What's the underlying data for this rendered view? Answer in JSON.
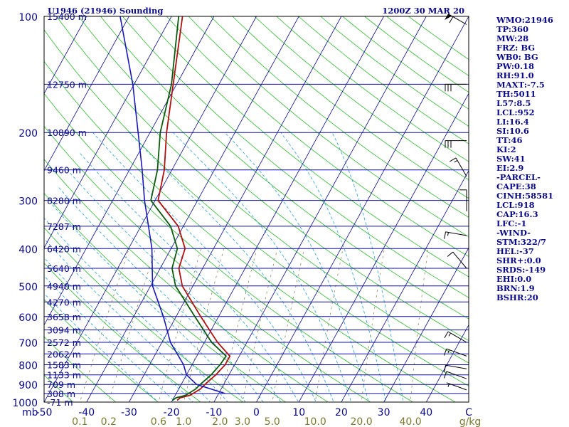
{
  "header": {
    "station": "U1946 (21946) Sounding",
    "valid_time": "1200Z 30 MAR 20"
  },
  "indices": [
    "WMO:21946",
    "TP:360",
    "MW:28",
    "FRZ: BG",
    "WB0: BG",
    "PW:0.18",
    "RH:91.0",
    "MAXT:-7.5",
    "TH:5011",
    "L57:8.5",
    "LCL:952",
    "LI:16.4",
    "SI:10.6",
    "TT:46",
    "KI:2",
    "SW:41",
    "EI:2.9",
    "-PARCEL-",
    "CAPE:38",
    "CINH:58581",
    "LCL:918",
    "CAP:16.3",
    "LFC:-1",
    "-WIND-",
    "STM:322/7",
    "HEL:-37",
    "SHR+:0.0",
    "SRDS:-149",
    "EHI:0.0",
    "BRN:1.9",
    "BSHR:20"
  ],
  "colors": {
    "frame": "#000000",
    "isobar": "#1010a0",
    "isotherm": "#0a0a8c",
    "dry_adiabat": "#2db82d",
    "moist_adiabat": "#2a9fd6",
    "mixing_ratio": "#8c8c5a",
    "temperature": "#b01010",
    "dewpoint": "#0c5a0c",
    "std_atmosphere": "#1818b8",
    "labels": "#0a0a8c",
    "mixing_labels": "#7a7a30",
    "wind_barbs": "#000000"
  },
  "chart_data": {
    "type": "skew-t log-p",
    "y_axis": {
      "quantity": "pressure",
      "unit_label": "mb",
      "scale": "log",
      "range": [
        1000,
        100
      ],
      "ticks": [
        100,
        200,
        300,
        400,
        500,
        600,
        700,
        800,
        900,
        1000
      ]
    },
    "x_axis": {
      "quantity": "temperature",
      "unit_label": "C",
      "range": [
        -50,
        50
      ],
      "ticks": [
        -50,
        -40,
        -30,
        -20,
        -10,
        0,
        10,
        20,
        30,
        40
      ],
      "tick_labels": [
        "-50",
        "-40",
        "-30",
        "-20",
        "-10",
        "0",
        "10",
        "20",
        "30",
        "40"
      ],
      "skew_degrees_per_decade": 50
    },
    "mixing_ratio_lines": {
      "unit_label": "g/kg",
      "values": [
        0.1,
        0.2,
        0.6,
        1.0,
        2.0,
        3.0,
        5.0,
        10.0,
        20.0,
        40.0
      ],
      "labels": [
        "0.1",
        "0.2",
        "0.6",
        "1.0",
        "2.0",
        "3.0",
        "5.0",
        "10.0",
        "20.0",
        "40.0"
      ]
    },
    "height_labels": [
      {
        "p": 100,
        "label": "15400 m"
      },
      {
        "p": 150,
        "label": "12750 m"
      },
      {
        "p": 200,
        "label": "10890 m"
      },
      {
        "p": 250,
        "label": "9460 m"
      },
      {
        "p": 300,
        "label": "8280 m"
      },
      {
        "p": 350,
        "label": "7287 m"
      },
      {
        "p": 400,
        "label": "6420 m"
      },
      {
        "p": 450,
        "label": "5640 m"
      },
      {
        "p": 500,
        "label": "4940 m"
      },
      {
        "p": 550,
        "label": "4270 m"
      },
      {
        "p": 600,
        "label": "3658 m"
      },
      {
        "p": 650,
        "label": "3094 m"
      },
      {
        "p": 700,
        "label": "2572 m"
      },
      {
        "p": 750,
        "label": "2062 m"
      },
      {
        "p": 800,
        "label": "1583 m"
      },
      {
        "p": 850,
        "label": "1133 m"
      },
      {
        "p": 900,
        "label": "709 m"
      },
      {
        "p": 950,
        "label": "308 m"
      },
      {
        "p": 1000,
        "label": "-71 m"
      }
    ],
    "series": [
      {
        "name": "Temperature",
        "points": [
          {
            "p": 990,
            "t": -18.9
          },
          {
            "p": 975,
            "t": -18.5
          },
          {
            "p": 960,
            "t": -16.5
          },
          {
            "p": 925,
            "t": -14.9
          },
          {
            "p": 900,
            "t": -14.4
          },
          {
            "p": 850,
            "t": -13.1
          },
          {
            "p": 800,
            "t": -12.2
          },
          {
            "p": 760,
            "t": -12.2
          },
          {
            "p": 700,
            "t": -16.9
          },
          {
            "p": 600,
            "t": -24.2
          },
          {
            "p": 500,
            "t": -32.5
          },
          {
            "p": 450,
            "t": -35.6
          },
          {
            "p": 400,
            "t": -36.7
          },
          {
            "p": 350,
            "t": -41.2
          },
          {
            "p": 300,
            "t": -49.3
          },
          {
            "p": 250,
            "t": -51.8
          },
          {
            "p": 200,
            "t": -56.1
          },
          {
            "p": 150,
            "t": -60.8
          },
          {
            "p": 100,
            "t": -67.4
          }
        ]
      },
      {
        "name": "Dewpoint",
        "points": [
          {
            "p": 990,
            "t": -20.0
          },
          {
            "p": 975,
            "t": -19.5
          },
          {
            "p": 960,
            "t": -17.5
          },
          {
            "p": 925,
            "t": -16.0
          },
          {
            "p": 900,
            "t": -15.5
          },
          {
            "p": 850,
            "t": -14.2
          },
          {
            "p": 800,
            "t": -13.4
          },
          {
            "p": 760,
            "t": -13.1
          },
          {
            "p": 700,
            "t": -18.3
          },
          {
            "p": 600,
            "t": -25.6
          },
          {
            "p": 500,
            "t": -34.1
          },
          {
            "p": 450,
            "t": -37.2
          },
          {
            "p": 400,
            "t": -38.5
          },
          {
            "p": 350,
            "t": -43.0
          },
          {
            "p": 300,
            "t": -51.0
          },
          {
            "p": 250,
            "t": -53.4
          },
          {
            "p": 200,
            "t": -57.6
          },
          {
            "p": 150,
            "t": -61.2
          },
          {
            "p": 100,
            "t": -68.3
          }
        ]
      },
      {
        "name": "Standard atmosphere",
        "points": [
          {
            "p": 950,
            "t": -8.5
          },
          {
            "p": 900,
            "t": -16.4
          },
          {
            "p": 850,
            "t": -20.0
          },
          {
            "p": 800,
            "t": -22.0
          },
          {
            "p": 700,
            "t": -28.0
          },
          {
            "p": 600,
            "t": -33.0
          },
          {
            "p": 500,
            "t": -39.5
          },
          {
            "p": 400,
            "t": -44.5
          },
          {
            "p": 300,
            "t": -52.5
          },
          {
            "p": 250,
            "t": -57.0
          },
          {
            "p": 200,
            "t": -62.8
          },
          {
            "p": 150,
            "t": -70.3
          },
          {
            "p": 100,
            "t": -82.1
          }
        ]
      }
    ],
    "wind_barbs": [
      {
        "p": 105,
        "dir": 300,
        "kt": 60
      },
      {
        "p": 150,
        "dir": 270,
        "kt": 30
      },
      {
        "p": 210,
        "dir": 270,
        "kt": 30
      },
      {
        "p": 260,
        "dir": 330,
        "kt": 15
      },
      {
        "p": 320,
        "dir": 0,
        "kt": 10
      },
      {
        "p": 370,
        "dir": 280,
        "kt": 15
      },
      {
        "p": 450,
        "dir": 320,
        "kt": 10
      },
      {
        "p": 700,
        "dir": 300,
        "kt": 15
      },
      {
        "p": 760,
        "dir": 290,
        "kt": 15
      },
      {
        "p": 820,
        "dir": 280,
        "kt": 10
      },
      {
        "p": 870,
        "dir": 290,
        "kt": 10
      },
      {
        "p": 930,
        "dir": 290,
        "kt": 5
      }
    ]
  }
}
